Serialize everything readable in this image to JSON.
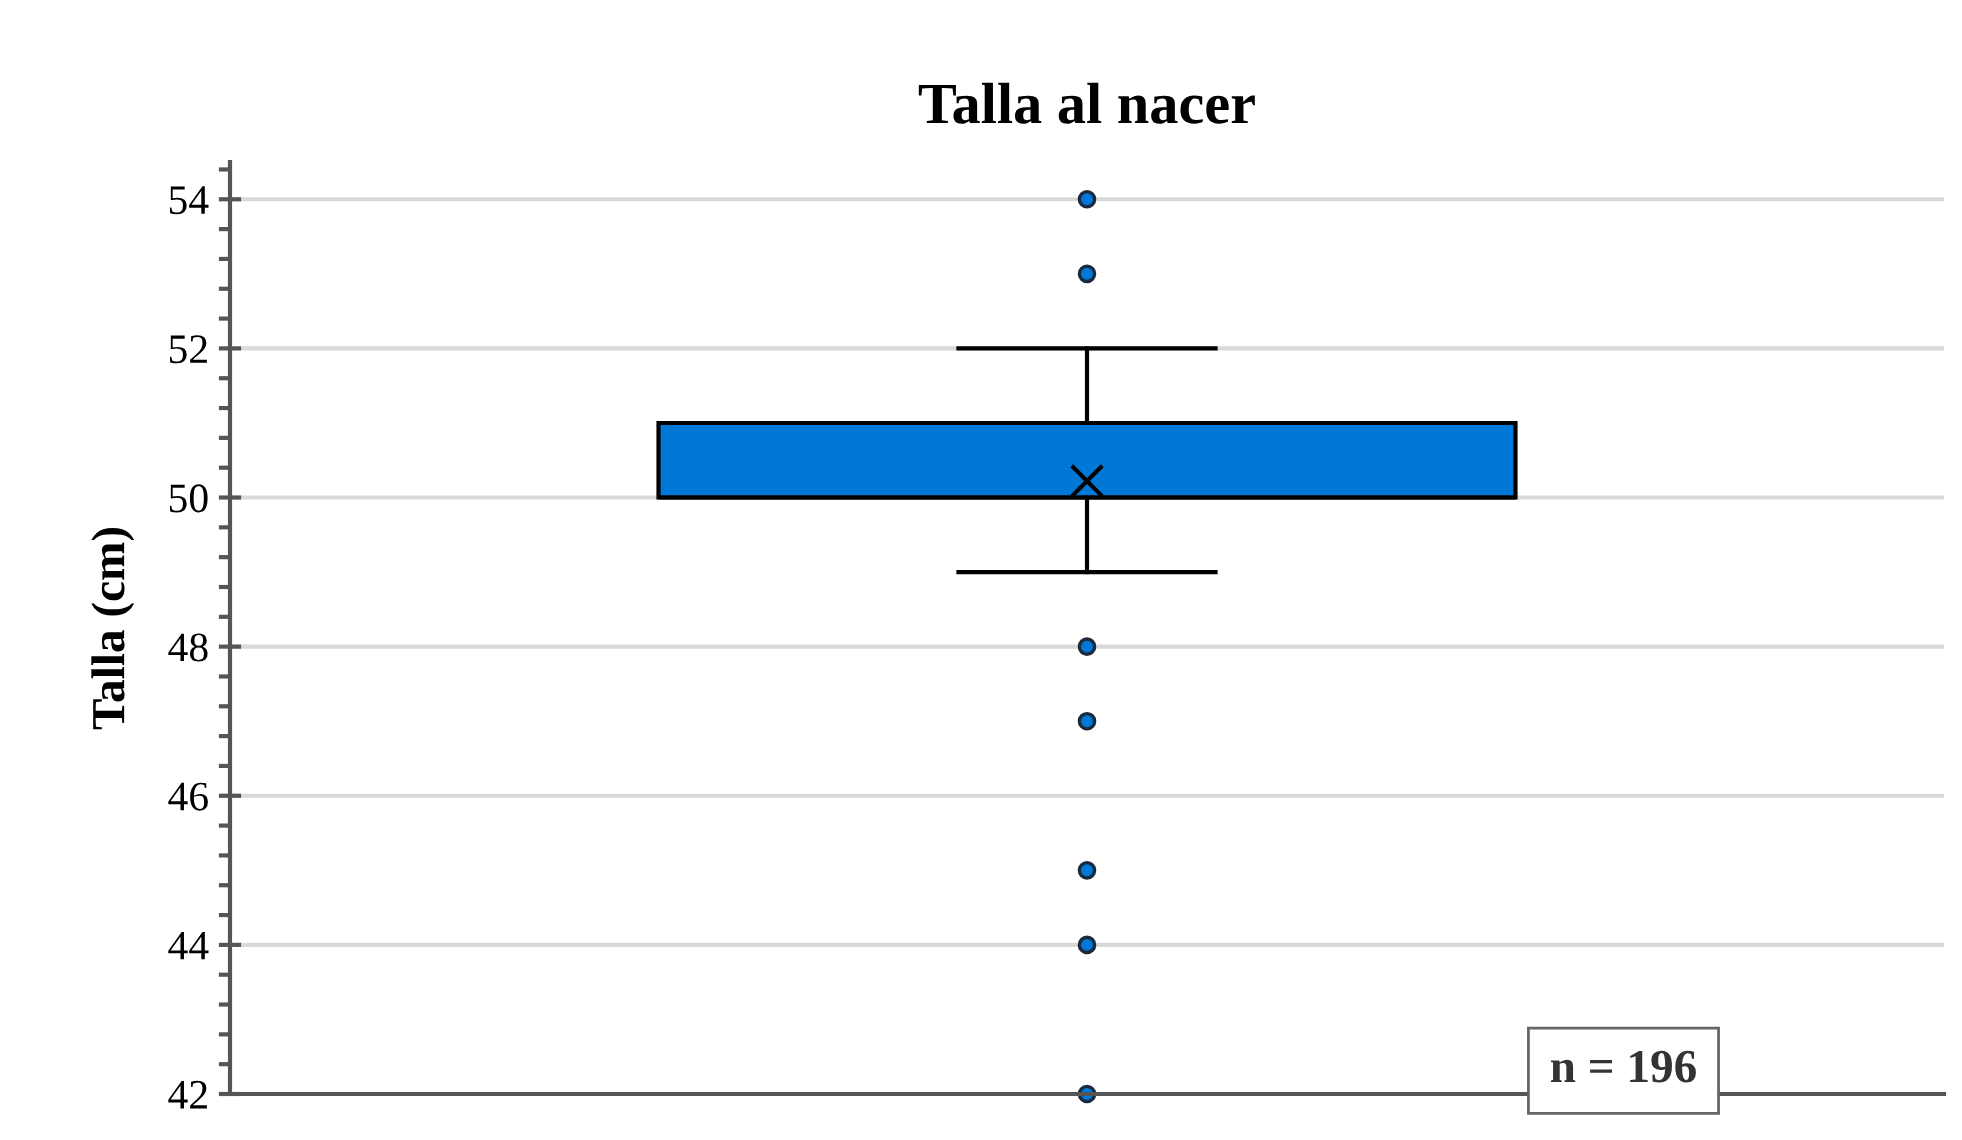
{
  "chart_data": {
    "type": "box",
    "title": "Talla al nacer",
    "ylabel": "Talla (cm)",
    "categories": [
      null
    ],
    "boxes": [
      {
        "low": 49,
        "q1": 50,
        "median": 50,
        "q3": 51,
        "high": 52,
        "mean": 50.22,
        "outliers": [
          54,
          53,
          48,
          47,
          45,
          44,
          42
        ]
      }
    ],
    "color": "#0078d7",
    "ylim": [
      42,
      54.5
    ],
    "yticks": [
      42,
      44,
      46,
      48,
      50,
      52,
      54
    ],
    "grid": "y",
    "tick_labels": "y",
    "annotations": [
      "n = 196"
    ]
  }
}
